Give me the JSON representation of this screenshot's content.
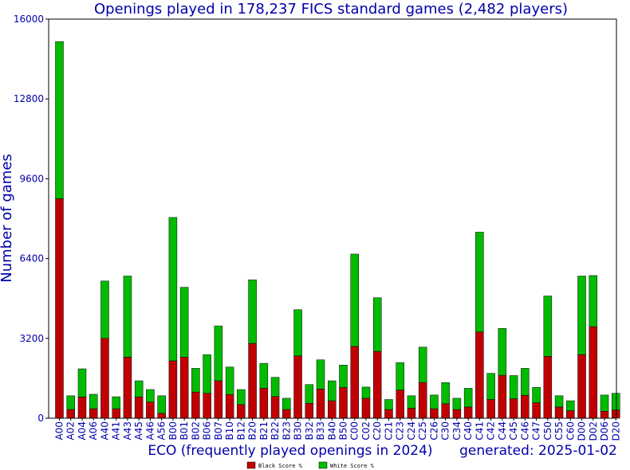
{
  "chart_data": {
    "type": "bar",
    "stacked": true,
    "title": "Openings played in 178,237 FICS standard games (2,482 players)",
    "xlabel": "ECO (frequently played openings in 2024)",
    "ylabel": "Number of games",
    "generated": "generated: 2025-01-02",
    "ylim": [
      0,
      16000
    ],
    "yticks": [
      0,
      3200,
      6400,
      9600,
      12800,
      16000
    ],
    "grid": false,
    "legend_position": "bottom-center",
    "categories": [
      "A00",
      "A02",
      "A04",
      "A06",
      "A40",
      "A41",
      "A43",
      "A45",
      "A46",
      "A56",
      "B00",
      "B01",
      "B02",
      "B06",
      "B07",
      "B10",
      "B12",
      "B20",
      "B21",
      "B22",
      "B23",
      "B30",
      "B32",
      "B33",
      "B40",
      "B50",
      "C00",
      "C02",
      "C20",
      "C21",
      "C23",
      "C24",
      "C25",
      "C26",
      "C30",
      "C34",
      "C40",
      "C41",
      "C42",
      "C44",
      "C45",
      "C46",
      "C47",
      "C50",
      "C55",
      "C60",
      "D00",
      "D02",
      "D06",
      "D20"
    ],
    "series": [
      {
        "name": "Black Score %",
        "color": "#c00000",
        "values": [
          8800,
          350,
          850,
          380,
          3200,
          380,
          2450,
          850,
          650,
          200,
          2300,
          2450,
          1050,
          1000,
          1500,
          950,
          550,
          3000,
          1200,
          870,
          350,
          2500,
          600,
          1170,
          700,
          1230,
          2880,
          800,
          2680,
          350,
          1130,
          400,
          1430,
          380,
          580,
          350,
          450,
          3460,
          750,
          1720,
          780,
          920,
          620,
          2480,
          450,
          300,
          2550,
          3670,
          280,
          330
        ]
      },
      {
        "name": "White Score %",
        "color": "#00bb00",
        "values": [
          6300,
          550,
          1130,
          580,
          2300,
          480,
          3250,
          650,
          500,
          700,
          5750,
          2800,
          950,
          1550,
          2200,
          1100,
          600,
          2550,
          1000,
          770,
          450,
          1850,
          750,
          1170,
          800,
          900,
          3700,
          450,
          2150,
          400,
          1100,
          500,
          1420,
          550,
          850,
          450,
          750,
          4000,
          1050,
          1880,
          930,
          1080,
          620,
          2420,
          450,
          400,
          3150,
          2050,
          650,
          670
        ]
      }
    ]
  },
  "colors": {
    "text": "#0000aa",
    "axis": "#000000",
    "background": "#ffffff"
  }
}
